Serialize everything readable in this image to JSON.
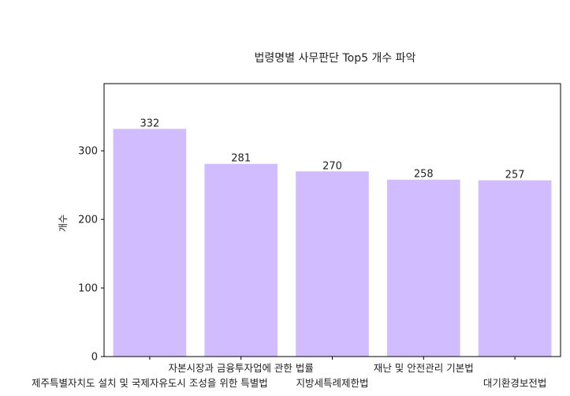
{
  "chart_data": {
    "type": "bar",
    "title": "법령명별 사무판단 Top5 개수 파악",
    "xlabel": "",
    "ylabel": "개수",
    "categories": [
      "제주특별자치도 설치 및 국제자유도시 조성을 위한 특별법",
      "자본시장과 금융투자업에 관한 법률",
      "지방세특례제한법",
      "재난 및 안전관리 기본법",
      "대기환경보전법"
    ],
    "values": [
      332,
      281,
      270,
      258,
      257
    ],
    "ylim": [
      0,
      398
    ],
    "yticks": [
      0,
      100,
      200,
      300
    ],
    "bar_color": "#d1bcff",
    "grid": false,
    "legend": "none"
  }
}
